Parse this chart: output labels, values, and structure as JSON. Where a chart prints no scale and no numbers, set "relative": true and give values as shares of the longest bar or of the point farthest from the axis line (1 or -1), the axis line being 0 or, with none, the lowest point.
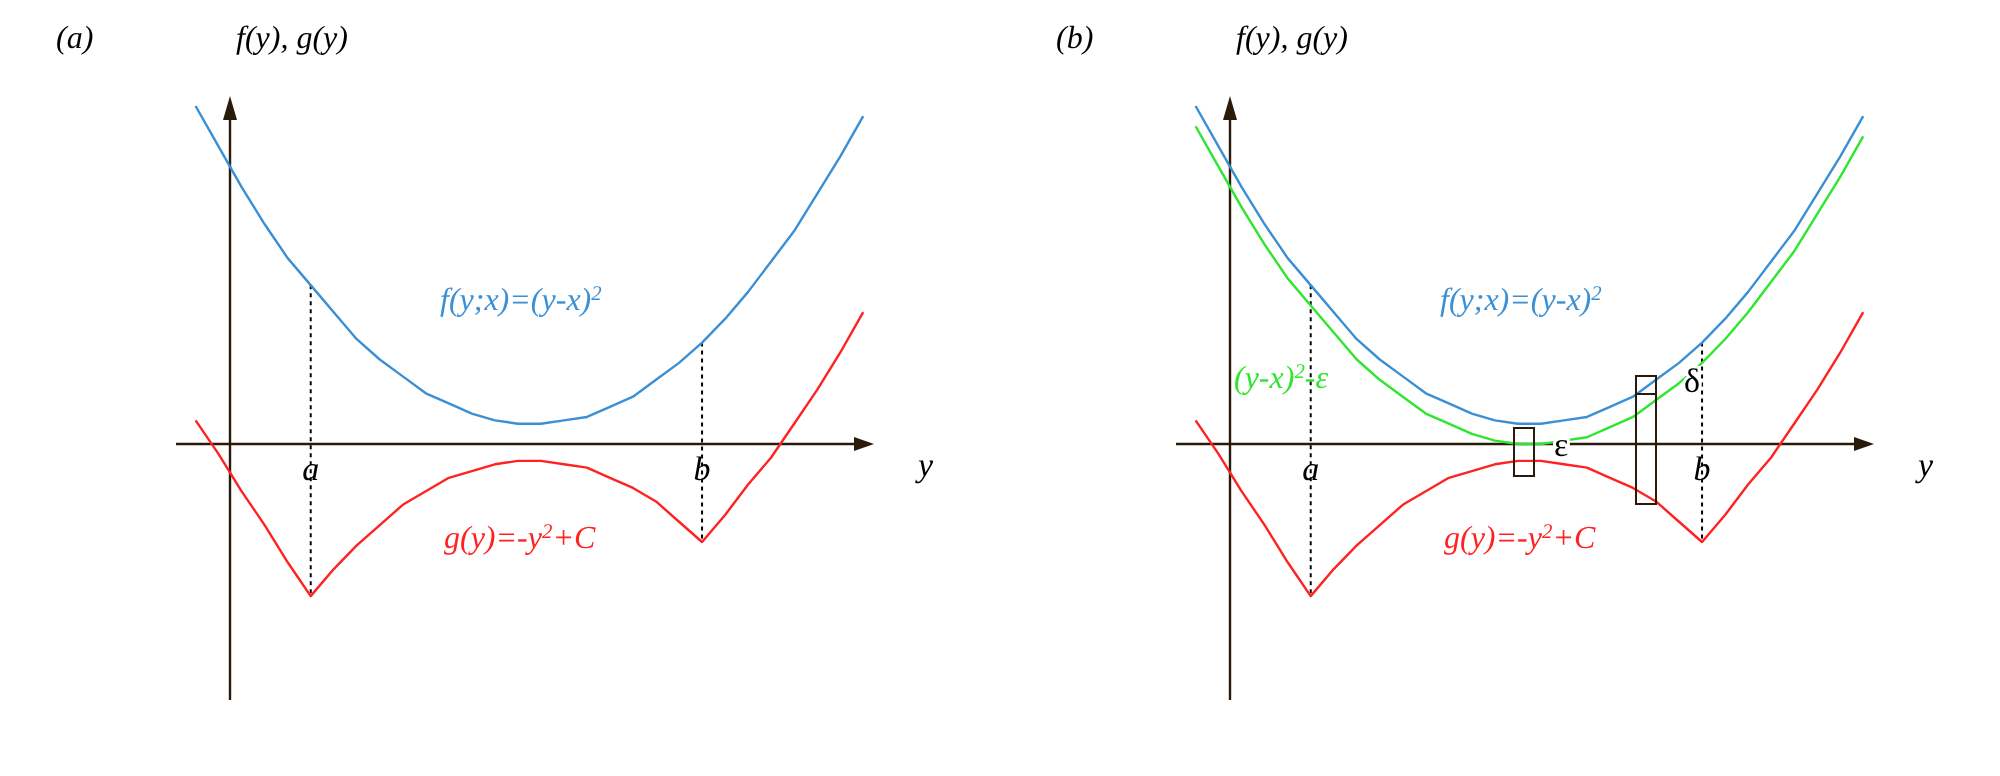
{
  "chart_data": [
    {
      "type": "line",
      "title": "(a)",
      "ylabel": "f(y), g(y)",
      "xlabel": "y",
      "relative": true,
      "categories": [
        null,
        null,
        null,
        null,
        null,
        "a",
        null,
        null,
        null,
        null,
        null,
        null,
        null,
        null,
        null,
        null,
        null,
        null,
        null,
        null,
        null,
        null,
        "b",
        null,
        null,
        null,
        null,
        null,
        null,
        null
      ],
      "series": [
        {
          "name": "f(y;x)=(y-x)$^{2}$",
          "color": "#3b8fd4",
          "values": [
            1.0,
            0.88,
            0.76,
            0.65,
            0.55,
            0.47,
            0.39,
            0.31,
            0.25,
            0.2,
            0.15,
            0.12,
            0.09,
            0.07,
            0.06,
            0.06,
            0.07,
            0.08,
            0.11,
            0.14,
            0.19,
            0.24,
            0.3,
            0.37,
            0.45,
            0.54,
            0.63,
            0.74,
            0.85,
            0.97
          ]
        },
        {
          "name": "g(y)=-y$^{2}$+C",
          "color": "#ff2222",
          "values": [
            0.07,
            -0.03,
            -0.14,
            -0.24,
            -0.35,
            -0.45,
            -0.37,
            -0.3,
            -0.24,
            -0.18,
            -0.14,
            -0.1,
            -0.08,
            -0.06,
            -0.05,
            -0.05,
            -0.06,
            -0.07,
            -0.1,
            -0.13,
            -0.17,
            -0.23,
            -0.29,
            -0.21,
            -0.12,
            -0.04,
            0.06,
            0.16,
            0.27,
            0.39
          ]
        }
      ],
      "ref_lines": [
        {
          "axis": "x",
          "value": "a",
          "line_style": "dotted"
        },
        {
          "axis": "x",
          "value": "b",
          "line_style": "dotted"
        }
      ]
    },
    {
      "type": "line",
      "title": "(b)",
      "ylabel": "f(y), g(y)",
      "xlabel": "y",
      "relative": true,
      "categories": [
        null,
        null,
        null,
        null,
        null,
        "a",
        null,
        null,
        null,
        null,
        null,
        null,
        null,
        null,
        null,
        null,
        null,
        null,
        null,
        null,
        null,
        null,
        "b",
        null,
        null,
        null,
        null,
        null,
        null,
        null
      ],
      "series": [
        {
          "name": "f(y;x)=(y-x)$^{2}$",
          "color": "#3b8fd4",
          "values": [
            1.0,
            0.88,
            0.76,
            0.65,
            0.55,
            0.47,
            0.39,
            0.31,
            0.25,
            0.2,
            0.15,
            0.12,
            0.09,
            0.07,
            0.06,
            0.06,
            0.07,
            0.08,
            0.11,
            0.14,
            0.19,
            0.24,
            0.3,
            0.37,
            0.45,
            0.54,
            0.63,
            0.74,
            0.85,
            0.97
          ]
        },
        {
          "name": "g(y)=-y$^{2}$+C",
          "color": "#ff2222",
          "values": [
            0.07,
            -0.03,
            -0.14,
            -0.24,
            -0.35,
            -0.45,
            -0.37,
            -0.3,
            -0.24,
            -0.18,
            -0.14,
            -0.1,
            -0.08,
            -0.06,
            -0.05,
            -0.05,
            -0.06,
            -0.07,
            -0.1,
            -0.13,
            -0.17,
            -0.23,
            -0.29,
            -0.21,
            -0.12,
            -0.04,
            0.06,
            0.16,
            0.27,
            0.39
          ]
        },
        {
          "name": "(y-x)$^{2}$-ε",
          "color": "#2ee62e",
          "values": [
            0.94,
            0.82,
            0.7,
            0.59,
            0.49,
            0.41,
            0.33,
            0.25,
            0.19,
            0.14,
            0.09,
            0.06,
            0.03,
            0.01,
            0.0,
            0.0,
            0.01,
            0.02,
            0.05,
            0.08,
            0.13,
            0.18,
            0.24,
            0.31,
            0.39,
            0.48,
            0.57,
            0.68,
            0.79,
            0.91
          ]
        }
      ],
      "annotations": [
        "ε",
        "δ"
      ],
      "ref_lines": [
        {
          "axis": "x",
          "value": "a",
          "line_style": "dotted"
        },
        {
          "axis": "x",
          "value": "b",
          "line_style": "dotted"
        }
      ]
    }
  ]
}
